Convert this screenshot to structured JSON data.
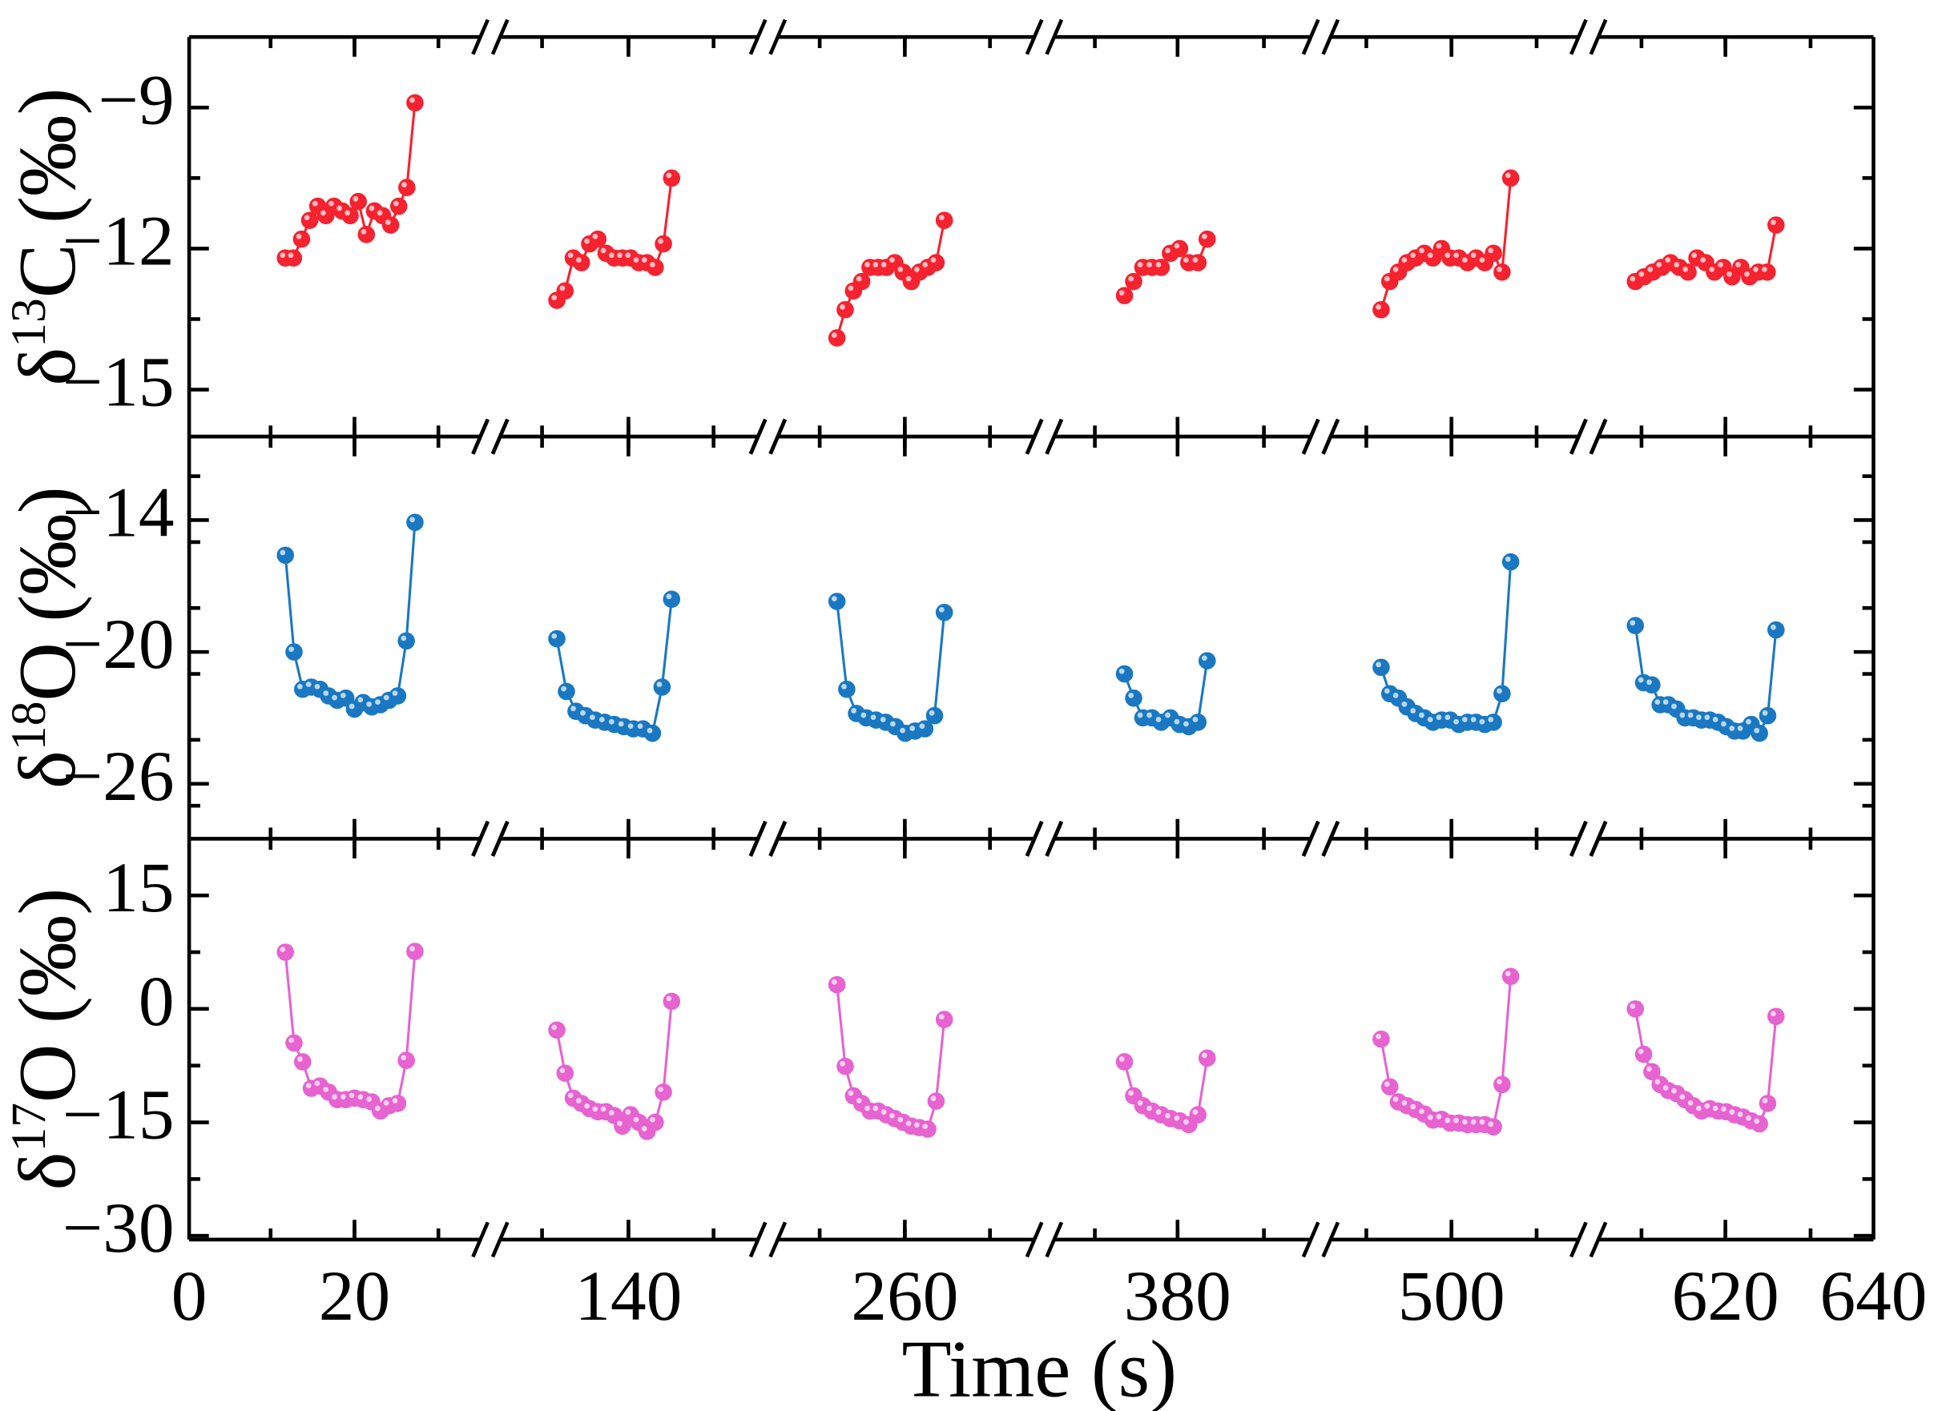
{
  "chart_data": {
    "type": "scatter",
    "layout": "three vertically stacked panels sharing a broken x-axis",
    "xlabel": "Time (s)",
    "x_tick_labels": [
      "0",
      "20",
      "140",
      "260",
      "380",
      "500",
      "620",
      "640"
    ],
    "x_axis_breaks": 5,
    "panels": [
      {
        "id": "d13c",
        "ylabel_parts": {
          "delta": "δ",
          "mass": "13",
          "element": "C",
          "unit": " (‰)"
        },
        "ylim": [
          -16.0,
          -7.5
        ],
        "y_ticks": [
          -9,
          -12,
          -15
        ],
        "y_tick_labels": [
          "−9",
          "−12",
          "−15"
        ],
        "color": "#f5222f",
        "segments": [
          {
            "y": [
              -12.2,
              -12.2,
              -11.8,
              -11.4,
              -11.1,
              -11.3,
              -11.1,
              -11.2,
              -11.3,
              -11.0,
              -11.7,
              -11.2,
              -11.3,
              -11.5,
              -11.1,
              -10.7,
              -8.9
            ]
          },
          {
            "y": [
              -13.1,
              -12.9,
              -12.2,
              -12.3,
              -11.9,
              -11.8,
              -12.1,
              -12.2,
              -12.2,
              -12.2,
              -12.3,
              -12.3,
              -12.4,
              -11.9,
              -10.5
            ]
          },
          {
            "y": [
              -13.9,
              -13.3,
              -12.9,
              -12.7,
              -12.4,
              -12.4,
              -12.4,
              -12.3,
              -12.5,
              -12.7,
              -12.5,
              -12.4,
              -12.3,
              -11.4
            ]
          },
          {
            "y": [
              -13.0,
              -12.7,
              -12.4,
              -12.4,
              -12.4,
              -12.1,
              -12.0,
              -12.3,
              -12.3,
              -11.8
            ]
          },
          {
            "y": [
              -13.3,
              -12.7,
              -12.5,
              -12.3,
              -12.2,
              -12.1,
              -12.2,
              -12.0,
              -12.2,
              -12.2,
              -12.3,
              -12.2,
              -12.3,
              -12.1,
              -12.5,
              -10.5
            ]
          },
          {
            "y": [
              -12.7,
              -12.6,
              -12.5,
              -12.4,
              -12.3,
              -12.4,
              -12.5,
              -12.2,
              -12.3,
              -12.5,
              -12.4,
              -12.6,
              -12.4,
              -12.6,
              -12.5,
              -12.5,
              -11.5
            ]
          }
        ]
      },
      {
        "id": "d18o",
        "ylabel_parts": {
          "delta": "δ",
          "mass": "18",
          "element": "O",
          "unit": " (‰)"
        },
        "ylim": [
          -28.5,
          -10.2
        ],
        "y_ticks": [
          -14,
          -20,
          -26
        ],
        "y_tick_labels": [
          "−14",
          "−20",
          "−26"
        ],
        "color": "#1a78c2",
        "segments": [
          {
            "y": [
              -15.6,
              -20.0,
              -21.7,
              -21.6,
              -21.7,
              -22.0,
              -22.2,
              -22.1,
              -22.6,
              -22.3,
              -22.5,
              -22.4,
              -22.2,
              -22.0,
              -19.5,
              -14.1
            ]
          },
          {
            "y": [
              -19.4,
              -21.8,
              -22.7,
              -22.9,
              -23.1,
              -23.2,
              -23.3,
              -23.4,
              -23.5,
              -23.5,
              -23.7,
              -21.6,
              -17.6
            ]
          },
          {
            "y": [
              -17.7,
              -21.7,
              -22.8,
              -23.0,
              -23.1,
              -23.2,
              -23.4,
              -23.7,
              -23.6,
              -23.5,
              -22.9,
              -18.2
            ]
          },
          {
            "y": [
              -21.0,
              -22.1,
              -23.0,
              -23.0,
              -23.2,
              -23.0,
              -23.3,
              -23.4,
              -23.2,
              -20.4
            ]
          },
          {
            "y": [
              -20.7,
              -21.9,
              -22.1,
              -22.5,
              -22.8,
              -23.0,
              -23.2,
              -23.1,
              -23.1,
              -23.3,
              -23.2,
              -23.2,
              -23.3,
              -23.2,
              -21.9,
              -15.9
            ]
          },
          {
            "y": [
              -18.8,
              -21.4,
              -21.5,
              -22.4,
              -22.4,
              -22.6,
              -23.0,
              -23.0,
              -23.1,
              -23.1,
              -23.2,
              -23.4,
              -23.6,
              -23.6,
              -23.3,
              -23.7,
              -22.9,
              -19.0
            ]
          }
        ]
      },
      {
        "id": "d17o",
        "ylabel_parts": {
          "delta": "δ",
          "mass": "17",
          "element": "O",
          "unit": " (‰)"
        },
        "ylim": [
          -30.5,
          22.5
        ],
        "y_ticks": [
          15,
          0,
          -15,
          -30
        ],
        "y_tick_labels": [
          "15",
          "0",
          "−15",
          "−30"
        ],
        "color": "#e663d0",
        "segments": [
          {
            "y": [
              7.5,
              -4.5,
              -7.0,
              -10.5,
              -10.2,
              -11.0,
              -12.0,
              -12.0,
              -11.8,
              -12.0,
              -12.3,
              -13.5,
              -12.8,
              -12.5,
              -6.8,
              7.6
            ]
          },
          {
            "y": [
              -2.8,
              -8.5,
              -11.8,
              -12.5,
              -13.2,
              -13.6,
              -13.6,
              -14.1,
              -15.5,
              -14.0,
              -15.0,
              -16.2,
              -15.0,
              -11.0,
              1.0
            ]
          },
          {
            "y": [
              3.2,
              -7.6,
              -11.5,
              -12.5,
              -13.5,
              -13.5,
              -14.0,
              -14.5,
              -15.0,
              -15.5,
              -15.7,
              -15.9,
              -12.2,
              -1.4
            ]
          },
          {
            "y": [
              -7.0,
              -11.5,
              -12.8,
              -13.5,
              -14.0,
              -14.5,
              -14.8,
              -15.3,
              -14.0,
              -6.5
            ]
          },
          {
            "y": [
              -4.0,
              -10.3,
              -12.3,
              -12.8,
              -13.3,
              -13.9,
              -14.7,
              -14.6,
              -15.1,
              -15.1,
              -15.3,
              -15.3,
              -15.3,
              -15.6,
              -10.0,
              4.3
            ]
          },
          {
            "y": [
              0.0,
              -6.0,
              -8.3,
              -10.0,
              -10.8,
              -11.2,
              -12.0,
              -12.8,
              -13.5,
              -13.2,
              -13.5,
              -13.6,
              -14.0,
              -14.3,
              -14.8,
              -15.2,
              -12.5,
              -1.0
            ]
          }
        ]
      }
    ]
  }
}
